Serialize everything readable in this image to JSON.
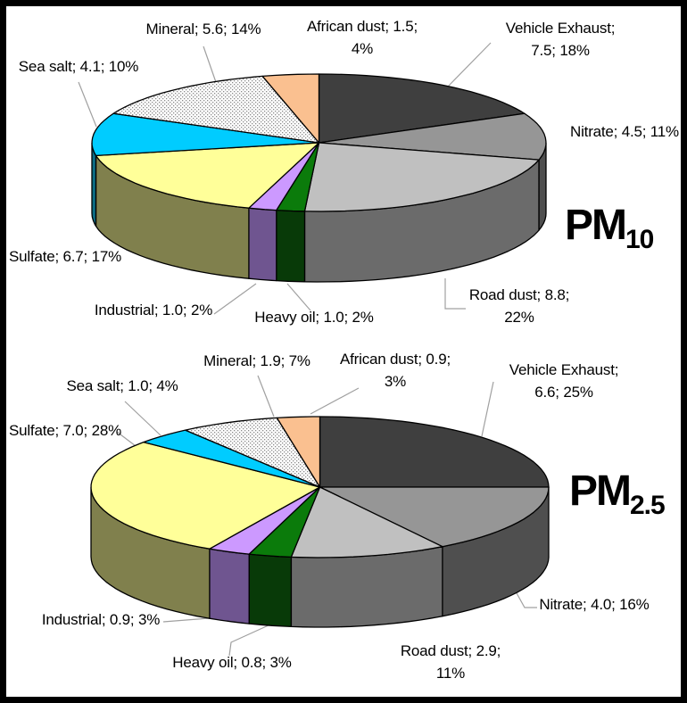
{
  "frame": {
    "border_color": "#000000",
    "background": "#FFFFFF"
  },
  "text_color": "#000000",
  "leader_color": "#A0A0A0",
  "chart_data": [
    {
      "id": "pm10",
      "type": "pie",
      "variant": "3d",
      "title_main": "PM",
      "title_sub": "10",
      "label_format": "{name}; {value}; {percent}%",
      "slices": [
        {
          "label": "Vehicle Exhaust",
          "value": 7.5,
          "value_text": "7.5",
          "percent": 18,
          "percent_text": "18%",
          "color": "#3F3F3F",
          "side_color": "#262626"
        },
        {
          "label": "Nitrate",
          "value": 4.5,
          "value_text": "4.5",
          "percent": 11,
          "percent_text": "11%",
          "color": "#969696",
          "side_color": "#4F4F4F"
        },
        {
          "label": "Road dust",
          "value": 8.8,
          "value_text": "8.8",
          "percent": 22,
          "percent_text": "22%",
          "color": "#C0C0C0",
          "side_color": "#6B6B6B"
        },
        {
          "label": "Heavy oil",
          "value": 1.0,
          "value_text": "1.0",
          "percent": 2,
          "percent_text": "2%",
          "color": "#0B7B0B",
          "side_color": "#083A08"
        },
        {
          "label": "Industrial",
          "value": 1.0,
          "value_text": "1.0",
          "percent": 2,
          "percent_text": "2%",
          "color": "#CC99FF",
          "side_color": "#6F5590"
        },
        {
          "label": "Sulfate",
          "value": 6.7,
          "value_text": "6.7",
          "percent": 17,
          "percent_text": "17%",
          "color": "#FFFF99",
          "side_color": "#80804D"
        },
        {
          "label": "Sea salt",
          "value": 4.1,
          "value_text": "4.1",
          "percent": 10,
          "percent_text": "10%",
          "color": "#00CCFF",
          "side_color": "#0D6E86"
        },
        {
          "label": "Mineral",
          "value": 5.6,
          "value_text": "5.6",
          "percent": 14,
          "percent_text": "14%",
          "color": "#FFFFFF",
          "pattern": "gray-dots",
          "side_color": "#9C9C9C"
        },
        {
          "label": "African dust",
          "value": 1.5,
          "value_text": "1.5",
          "percent": 4,
          "percent_text": "4%",
          "color": "#FAC090",
          "side_color": "#B08050"
        }
      ]
    },
    {
      "id": "pm2_5",
      "type": "pie",
      "variant": "3d",
      "title_main": "PM",
      "title_sub": "2.5",
      "label_format": "{name}; {value}; {percent}%",
      "slices": [
        {
          "label": "Vehicle Exhaust",
          "value": 6.6,
          "value_text": "6.6",
          "percent": 25,
          "percent_text": "25%",
          "color": "#3F3F3F",
          "side_color": "#262626"
        },
        {
          "label": "Nitrate",
          "value": 4.0,
          "value_text": "4.0",
          "percent": 16,
          "percent_text": "16%",
          "color": "#969696",
          "side_color": "#4F4F4F"
        },
        {
          "label": "Road dust",
          "value": 2.9,
          "value_text": "2.9",
          "percent": 11,
          "percent_text": "11%",
          "color": "#C0C0C0",
          "side_color": "#6B6B6B"
        },
        {
          "label": "Heavy oil",
          "value": 0.8,
          "value_text": "0.8",
          "percent": 3,
          "percent_text": "3%",
          "color": "#0B7B0B",
          "side_color": "#083A08"
        },
        {
          "label": "Industrial",
          "value": 0.9,
          "value_text": "0.9",
          "percent": 3,
          "percent_text": "3%",
          "color": "#CC99FF",
          "side_color": "#6F5590"
        },
        {
          "label": "Sulfate",
          "value": 7.0,
          "value_text": "7.0",
          "percent": 28,
          "percent_text": "28%",
          "color": "#FFFF99",
          "side_color": "#80804D"
        },
        {
          "label": "Sea salt",
          "value": 1.0,
          "value_text": "1.0",
          "percent": 4,
          "percent_text": "4%",
          "color": "#00CCFF",
          "side_color": "#0D6E86"
        },
        {
          "label": "Mineral",
          "value": 1.9,
          "value_text": "1.9",
          "percent": 7,
          "percent_text": "7%",
          "color": "#FFFFFF",
          "pattern": "gray-dots",
          "side_color": "#9C9C9C"
        },
        {
          "label": "African dust",
          "value": 0.9,
          "value_text": "0.9",
          "percent": 3,
          "percent_text": "3%",
          "color": "#FAC090",
          "side_color": "#B08050"
        }
      ]
    }
  ]
}
